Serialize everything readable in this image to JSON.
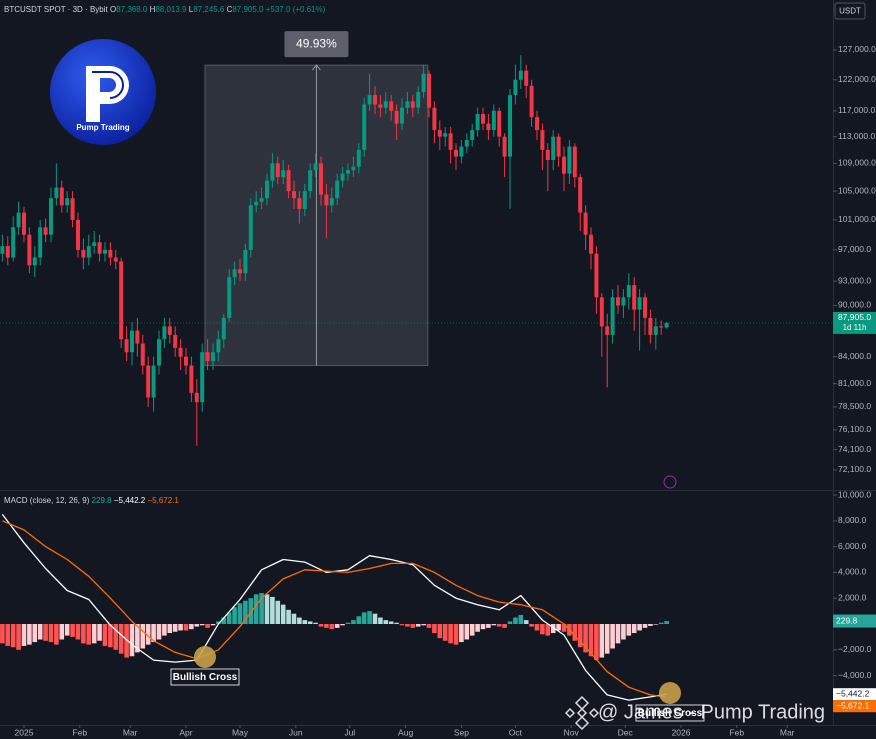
{
  "logo_text": "Pump Trading",
  "watermark": "@ James - Pump Trading",
  "chart_data": [
    {
      "type": "candlestick",
      "title": "BTCUSDT SPOT · 3D · Bybit",
      "legend": [
        "O",
        "87,368.0",
        "H",
        "88,013.9",
        "L",
        "87,245.6",
        "C",
        "87,905.0",
        "+537.0 (+0.61%)"
      ],
      "currency": "USDT",
      "x": [
        -4,
        -3,
        -2,
        -1,
        0,
        1,
        2,
        3,
        4,
        5,
        6,
        7,
        8,
        9,
        10,
        11,
        12,
        13,
        14,
        15,
        16,
        17,
        18,
        19,
        20,
        21,
        22,
        23,
        24,
        25,
        26,
        27,
        28,
        29,
        30,
        31,
        32,
        33,
        34,
        35,
        36,
        37,
        38,
        39,
        40,
        41,
        42,
        43,
        44,
        45,
        46,
        47,
        48,
        49,
        50,
        51,
        52,
        53,
        54,
        55,
        56,
        57,
        58,
        59,
        60,
        61,
        62,
        63,
        64,
        65,
        66,
        67,
        68,
        69,
        70,
        71,
        72,
        73,
        74,
        75,
        76,
        77,
        78,
        79,
        80,
        81,
        82,
        83,
        84,
        85,
        86,
        87,
        88,
        89,
        90,
        91,
        92,
        93,
        94,
        95,
        96,
        97,
        98,
        99,
        100,
        101,
        102,
        103,
        104,
        105,
        106,
        107,
        108,
        109,
        110,
        111,
        112,
        113,
        114,
        115,
        116,
        117,
        118,
        119
      ],
      "open": [
        96500,
        97500,
        96000,
        100000,
        102000,
        99000,
        95000,
        96000,
        100000,
        99000,
        104000,
        105500,
        103000,
        104000,
        101000,
        97000,
        96000,
        97500,
        98000,
        96500,
        97000,
        96000,
        95500,
        86000,
        84500,
        87000,
        85500,
        83000,
        79500,
        83000,
        86000,
        87500,
        86500,
        85000,
        84000,
        83000,
        80000,
        79000,
        84500,
        83500,
        84500,
        86000,
        88500,
        93500,
        94500,
        94000,
        97000,
        103000,
        103500,
        104000,
        106500,
        109000,
        107000,
        108000,
        105000,
        104000,
        102500,
        105000,
        108000,
        109000,
        104500,
        103000,
        104000,
        106500,
        107500,
        108000,
        108500,
        111000,
        118000,
        119500,
        118000,
        117500,
        118500,
        117000,
        115000,
        117500,
        118500,
        117500,
        120000,
        123000,
        117500,
        114000,
        113000,
        113500,
        111000,
        110000,
        111500,
        112500,
        114000,
        116500,
        115000,
        114000,
        117000,
        113000,
        110000,
        119500,
        122000,
        123500,
        121000,
        116000,
        114000,
        111000,
        109500,
        113000,
        110000,
        107500,
        111500,
        107000,
        102000,
        99000,
        96500,
        91000,
        87500,
        86500,
        91000,
        90000,
        91000,
        92500,
        89500,
        91000,
        88500,
        86500,
        87500,
        87368
      ],
      "high": [
        99000,
        98800,
        101500,
        103500,
        102800,
        100000,
        97500,
        101000,
        101200,
        105500,
        109000,
        106500,
        105000,
        105000,
        102000,
        98500,
        99000,
        99500,
        99000,
        98000,
        98000,
        97000,
        96000,
        87500,
        88000,
        88500,
        86500,
        84000,
        84000,
        87000,
        88500,
        88500,
        87500,
        86000,
        85000,
        84000,
        81500,
        85500,
        86000,
        85500,
        87000,
        89000,
        94500,
        95500,
        95800,
        97800,
        104000,
        105000,
        105500,
        107500,
        110500,
        110000,
        109500,
        108800,
        106500,
        105000,
        106000,
        109000,
        110500,
        110000,
        106000,
        105500,
        107500,
        108500,
        109000,
        110000,
        112000,
        119000,
        123000,
        121000,
        119500,
        120000,
        119500,
        118000,
        119000,
        120000,
        119500,
        121000,
        124500,
        123500,
        118500,
        115500,
        114500,
        114500,
        112000,
        112500,
        113500,
        115000,
        117500,
        117500,
        116500,
        118000,
        117500,
        113500,
        120500,
        124500,
        126100,
        124500,
        122000,
        117000,
        115000,
        112000,
        114000,
        113500,
        111500,
        112500,
        112000,
        107500,
        103000,
        100000,
        97500,
        91500,
        89000,
        92000,
        92500,
        92000,
        94000,
        93500,
        92000,
        91500,
        89500,
        88500,
        88200,
        88013.9
      ],
      "low": [
        95500,
        95000,
        95500,
        99000,
        98000,
        94000,
        93500,
        95000,
        98000,
        98000,
        103000,
        102000,
        102000,
        100000,
        96000,
        94500,
        95000,
        96500,
        95500,
        95500,
        95000,
        94500,
        85000,
        83500,
        83000,
        84000,
        82000,
        78500,
        78000,
        82000,
        85000,
        85500,
        84000,
        82500,
        82000,
        79000,
        74500,
        78000,
        82500,
        82500,
        83500,
        85000,
        88000,
        92500,
        93000,
        93000,
        96000,
        102000,
        102500,
        103000,
        105500,
        106000,
        106000,
        104000,
        102500,
        100500,
        101500,
        104000,
        107000,
        103000,
        98500,
        102000,
        103000,
        105500,
        106500,
        107000,
        107500,
        110000,
        117000,
        116500,
        116000,
        116500,
        115500,
        112500,
        114000,
        116500,
        116000,
        116500,
        119000,
        116000,
        112000,
        111000,
        111500,
        109000,
        108000,
        109000,
        110500,
        111500,
        113000,
        114000,
        112500,
        113000,
        111500,
        107000,
        102500,
        118000,
        120500,
        119000,
        114500,
        112500,
        108000,
        105000,
        108000,
        108500,
        105000,
        106000,
        105500,
        99500,
        97000,
        94500,
        89000,
        84000,
        80600,
        85500,
        89000,
        88500,
        89500,
        87000,
        84700,
        86500,
        85500,
        84800,
        86500,
        87245.6
      ],
      "close": [
        97500,
        96000,
        100000,
        102000,
        99000,
        95000,
        96000,
        100000,
        99000,
        104000,
        105500,
        103000,
        104000,
        101000,
        97000,
        96000,
        97500,
        98000,
        96500,
        97000,
        96000,
        95500,
        86000,
        84500,
        87000,
        85500,
        83000,
        79500,
        83000,
        86000,
        87500,
        86500,
        85000,
        84000,
        83000,
        80000,
        79000,
        84500,
        83500,
        84500,
        86000,
        88500,
        93500,
        94500,
        94000,
        97000,
        103000,
        103500,
        104000,
        106500,
        109000,
        107000,
        108000,
        105000,
        104000,
        102500,
        105000,
        108000,
        109000,
        104500,
        103000,
        104000,
        106500,
        107500,
        108000,
        108500,
        111000,
        118000,
        119500,
        118000,
        117500,
        118500,
        117000,
        115000,
        117500,
        118500,
        117500,
        120000,
        123000,
        117500,
        114000,
        113000,
        113500,
        111000,
        110000,
        111500,
        112500,
        114000,
        116500,
        115000,
        114000,
        117000,
        113000,
        110000,
        119500,
        122000,
        123500,
        121000,
        116000,
        114000,
        111000,
        109500,
        113000,
        110000,
        107500,
        111500,
        107000,
        102000,
        99000,
        96500,
        91000,
        87500,
        86500,
        91000,
        90000,
        91000,
        92500,
        89500,
        91000,
        88500,
        86500,
        87500,
        87368,
        87905
      ],
      "up_color": "#089981",
      "down_color": "#f23645",
      "log": true,
      "xlim": [
        -4.44,
        149.81
      ],
      "ylim": [
        70180,
        135850
      ],
      "yticks": [
        {
          "value": 127000,
          "label": "127,000.0"
        },
        {
          "value": 122000,
          "label": "122,000.0"
        },
        {
          "value": 117000,
          "label": "117,000.0"
        },
        {
          "value": 113000,
          "label": "113,000.0"
        },
        {
          "value": 109000,
          "label": "109,000.0"
        },
        {
          "value": 105000,
          "label": "105,000.0"
        },
        {
          "value": 101000,
          "label": "101,000.0"
        },
        {
          "value": 97000,
          "label": "97,000.0"
        },
        {
          "value": 93000,
          "label": "93,000.0"
        },
        {
          "value": 90000,
          "label": "90,000.0"
        },
        {
          "value": 84000,
          "label": "84,000.0"
        },
        {
          "value": 81000,
          "label": "81,000.0"
        },
        {
          "value": 78500,
          "label": "78,500.0"
        },
        {
          "value": 76100,
          "label": "76,100.0"
        },
        {
          "value": 74100,
          "label": "74,100.0"
        },
        {
          "value": 72100,
          "label": "72,100.0"
        }
      ],
      "last_price": 87905,
      "last_price_label": "87,905.0",
      "countdown": "1d 11h",
      "measure": {
        "label": "49.93%",
        "from": 83000,
        "to": 124440,
        "x_from": 33.5,
        "x_to": 74.8
      }
    },
    {
      "type": "macd",
      "title": "MACD (close, 12, 26, 9)",
      "histogram": [
        -1500,
        -1700,
        -1800,
        -2000,
        -1700,
        -1600,
        -1400,
        -1200,
        -1300,
        -1400,
        -1600,
        -1200,
        -900,
        -1000,
        -1200,
        -1500,
        -1600,
        -1500,
        -1300,
        -1700,
        -1800,
        -2000,
        -2300,
        -2600,
        -2500,
        -2200,
        -1900,
        -1600,
        -1400,
        -1200,
        -900,
        -700,
        -600,
        -500,
        -500,
        -400,
        -200,
        -100,
        -300,
        -100,
        200,
        500,
        900,
        1300,
        1600,
        1800,
        2000,
        2300,
        2400,
        2300,
        2100,
        1800,
        1500,
        1100,
        800,
        500,
        300,
        200,
        100,
        -200,
        -300,
        -400,
        -300,
        -100,
        100,
        300,
        600,
        900,
        1000,
        800,
        500,
        300,
        200,
        100,
        -100,
        -200,
        -300,
        -200,
        -100,
        -300,
        -700,
        -1100,
        -1300,
        -1500,
        -1600,
        -1400,
        -1200,
        -900,
        -600,
        -400,
        -300,
        -100,
        -200,
        -300,
        200,
        500,
        700,
        300,
        -200,
        -500,
        -800,
        -900,
        -700,
        -500,
        -600,
        -900,
        -1300,
        -1800,
        -2200,
        -2500,
        -2800,
        -2600,
        -2300,
        -1900,
        -1500,
        -1200,
        -900,
        -700,
        -500,
        -300,
        -150,
        -50,
        100,
        229.8
      ],
      "histogram_label": "229.8",
      "histogram_colors": [
        "#26a69a",
        "#b2dfdb",
        "#ffcdd2",
        "#ff5252"
      ],
      "series": [
        {
          "color": "#ffffff",
          "x": [
            -4,
            0,
            4,
            8,
            12,
            16,
            20,
            24,
            28,
            32,
            36,
            40,
            44,
            48,
            52,
            56,
            60,
            64,
            68,
            72,
            76,
            80,
            84,
            88,
            92,
            96,
            100,
            104,
            108,
            112,
            116,
            119
          ],
          "values": [
            8500,
            6300,
            4300,
            2600,
            1900,
            -100,
            -1600,
            -2800,
            -2950,
            -2800,
            0,
            1900,
            4200,
            5000,
            4800,
            4000,
            4200,
            5300,
            5000,
            4600,
            3000,
            2000,
            1500,
            1100,
            2200,
            300,
            -850,
            -3600,
            -5500,
            -5900,
            -5650,
            -5442.2
          ],
          "last_label": "−5,442.2"
        },
        {
          "color": "#ff6d00",
          "x": [
            -4,
            0,
            4,
            8,
            12,
            16,
            20,
            24,
            28,
            32,
            36,
            40,
            44,
            48,
            52,
            56,
            60,
            64,
            68,
            72,
            76,
            80,
            84,
            88,
            92,
            96,
            100,
            104,
            108,
            112,
            116,
            119
          ],
          "values": [
            8000,
            7300,
            6000,
            5000,
            3700,
            2000,
            200,
            -1300,
            -2200,
            -2700,
            -2000,
            -200,
            2000,
            3500,
            4200,
            4100,
            4000,
            4300,
            4700,
            4700,
            4000,
            3000,
            2200,
            1700,
            1500,
            1100,
            0,
            -1800,
            -3700,
            -4900,
            -5500,
            -5672.1
          ],
          "last_label": "−5,672.1"
        }
      ],
      "xlim": [
        -4.44,
        149.81
      ],
      "ylim": [
        -7830,
        10390
      ],
      "yticks": [
        {
          "value": 10000,
          "label": "10,000.0"
        },
        {
          "value": 8000,
          "label": "8,000.0"
        },
        {
          "value": 6000,
          "label": "6,000.0"
        },
        {
          "value": 4000,
          "label": "4,000.0"
        },
        {
          "value": 2000,
          "label": "2,000.0"
        },
        {
          "value": -2000,
          "label": "−2,000.0"
        },
        {
          "value": -4000,
          "label": "−4,000.0"
        }
      ],
      "xticks": [
        {
          "value": 0,
          "label": "2025"
        },
        {
          "value": 10.33,
          "label": "Feb"
        },
        {
          "value": 19.67,
          "label": "Mar"
        },
        {
          "value": 30,
          "label": "Apr"
        },
        {
          "value": 40,
          "label": "May"
        },
        {
          "value": 50.33,
          "label": "Jun"
        },
        {
          "value": 60.33,
          "label": "Jul"
        },
        {
          "value": 70.67,
          "label": "Aug"
        },
        {
          "value": 81,
          "label": "Sep"
        },
        {
          "value": 91,
          "label": "Oct"
        },
        {
          "value": 101.33,
          "label": "Nov"
        },
        {
          "value": 111.33,
          "label": "Dec"
        },
        {
          "value": 121.67,
          "label": "2026"
        },
        {
          "value": 132,
          "label": "Feb"
        },
        {
          "value": 141.33,
          "label": "Mar"
        }
      ],
      "annotations": [
        "Bullish Cross",
        "Bullish Cross"
      ]
    }
  ]
}
